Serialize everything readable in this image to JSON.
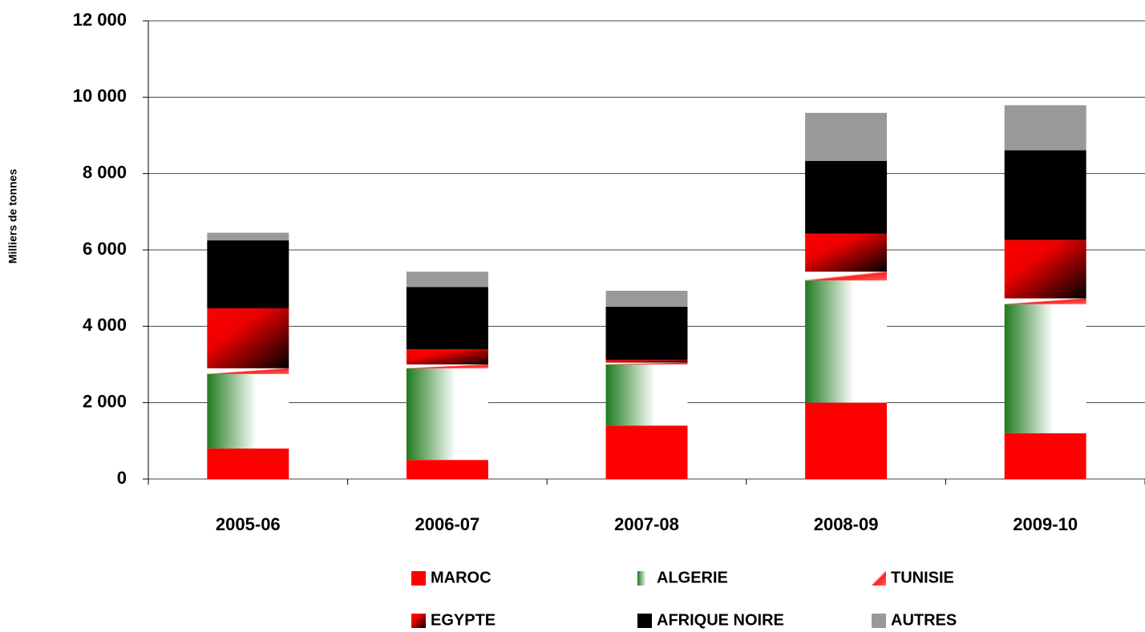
{
  "chart_data": {
    "type": "stacked_bar",
    "y_label": "Milliers de tonnes",
    "categories": [
      "2005-06",
      "2006-07",
      "2007-08",
      "2008-09",
      "2009-10"
    ],
    "series": [
      {
        "name": "MAROC",
        "color": "#ff0000",
        "values": [
          800,
          500,
          1400,
          2000,
          1200
        ]
      },
      {
        "name": "ALGERIE",
        "color": "#2e8b2e",
        "values": [
          1950,
          2400,
          1600,
          3200,
          3380
        ]
      },
      {
        "name": "TUNISIE",
        "color": "#ff3030",
        "values": [
          150,
          100,
          50,
          230,
          150
        ]
      },
      {
        "name": "EGYPTE",
        "color": "#c00000",
        "values": [
          1570,
          400,
          70,
          1000,
          1530
        ]
      },
      {
        "name": "AFRIQUE NOIRE",
        "color": "#000000",
        "values": [
          1780,
          1630,
          1390,
          1900,
          2350
        ]
      },
      {
        "name": "AUTRES",
        "color": "#999999",
        "values": [
          200,
          400,
          420,
          1260,
          1180
        ]
      }
    ],
    "ylim": [
      0,
      12000
    ],
    "yticks": [
      0,
      {
        "value": 2000,
        "label": "2 000"
      },
      {
        "value": 4000,
        "label": "4 000"
      },
      {
        "value": 6000,
        "label": "6 000"
      },
      {
        "value": 8000,
        "label": "8 000"
      },
      {
        "value": 10000,
        "label": "10 000"
      },
      {
        "value": 12000,
        "label": "12 000"
      }
    ],
    "grid": true
  }
}
